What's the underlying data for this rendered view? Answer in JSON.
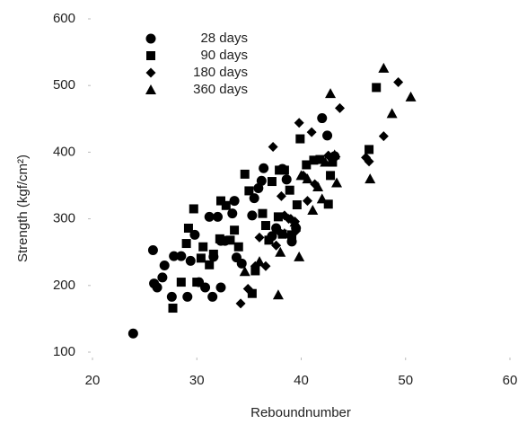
{
  "chart_data": {
    "type": "scatter",
    "x_label": "Reboundnumber",
    "y_label": "Strength (kgf/cm²)",
    "xlim": [
      20,
      60
    ],
    "xticks": [
      20,
      30,
      40,
      50,
      60
    ],
    "ylim": [
      100,
      600
    ],
    "yticks": [
      100,
      200,
      300,
      400,
      500,
      600
    ],
    "legend": "upper left",
    "series": [
      {
        "name": "28 days",
        "marker": "circle",
        "color": "#000000",
        "x": [
          23.9,
          25.8,
          25.9,
          26.2,
          26.7,
          26.9,
          27.6,
          27.8,
          28.5,
          29.1,
          29.4,
          29.8,
          30.2,
          30.8,
          31.2,
          31.5,
          31.6,
          32.0,
          32.3,
          32.3,
          32.7,
          33.4,
          33.6,
          33.8,
          34.3,
          35.3,
          35.5,
          35.9,
          36.2,
          36.4,
          37.2,
          37.6,
          38.2,
          38.6,
          39.1,
          39.5,
          42.0,
          42.5,
          43.2
        ],
        "y": [
          128,
          253,
          203,
          197,
          212,
          230,
          183,
          244,
          244,
          183,
          237,
          276,
          205,
          197,
          303,
          183,
          243,
          303,
          197,
          267,
          267,
          308,
          327,
          242,
          233,
          305,
          331,
          346,
          357,
          376,
          274,
          286,
          375,
          359,
          266,
          286,
          451,
          425,
          394
        ]
      },
      {
        "name": "90 days",
        "marker": "square",
        "color": "#000000",
        "x": [
          27.7,
          28.5,
          29.0,
          29.2,
          29.7,
          30.0,
          30.4,
          30.6,
          31.2,
          31.6,
          32.2,
          32.3,
          32.8,
          33.2,
          33.6,
          34.0,
          34.6,
          35.0,
          35.3,
          35.6,
          36.3,
          36.6,
          36.9,
          37.2,
          37.8,
          37.9,
          38.2,
          38.4,
          38.9,
          39.1,
          39.6,
          39.9,
          40.5,
          41.2,
          41.8,
          42.6,
          42.8,
          43.0,
          46.5,
          47.2
        ],
        "y": [
          166,
          205,
          263,
          286,
          315,
          205,
          241,
          258,
          231,
          247,
          270,
          327,
          320,
          268,
          283,
          258,
          367,
          342,
          188,
          222,
          308,
          290,
          268,
          356,
          303,
          373,
          277,
          373,
          343,
          276,
          321,
          420,
          381,
          388,
          389,
          322,
          365,
          385,
          404,
          497
        ]
      },
      {
        "name": "180 days",
        "marker": "diamond",
        "color": "#000000",
        "x": [
          34.2,
          34.9,
          35.6,
          36.0,
          36.6,
          37.3,
          37.6,
          37.8,
          38.1,
          38.4,
          38.8,
          39.0,
          39.4,
          39.5,
          39.8,
          40.2,
          40.6,
          41.0,
          41.3,
          42.6,
          43.3,
          43.7,
          46.2,
          46.5,
          47.9,
          49.3
        ],
        "y": [
          173,
          195,
          229,
          272,
          229,
          408,
          260,
          282,
          334,
          305,
          300,
          300,
          296,
          282,
          444,
          365,
          327,
          430,
          352,
          395,
          393,
          466,
          392,
          386,
          424,
          505
        ]
      },
      {
        "name": "360 days",
        "marker": "triangle",
        "color": "#000000",
        "x": [
          34.6,
          36.0,
          37.8,
          38.0,
          38.4,
          39.4,
          39.8,
          40.0,
          40.6,
          41.1,
          41.6,
          42.0,
          42.3,
          42.8,
          43.2,
          43.4,
          46.6,
          48.7,
          47.9,
          50.5
        ],
        "y": [
          221,
          236,
          186,
          250,
          278,
          295,
          243,
          365,
          360,
          313,
          348,
          330,
          385,
          488,
          396,
          354,
          360,
          458,
          526,
          483
        ]
      }
    ]
  }
}
